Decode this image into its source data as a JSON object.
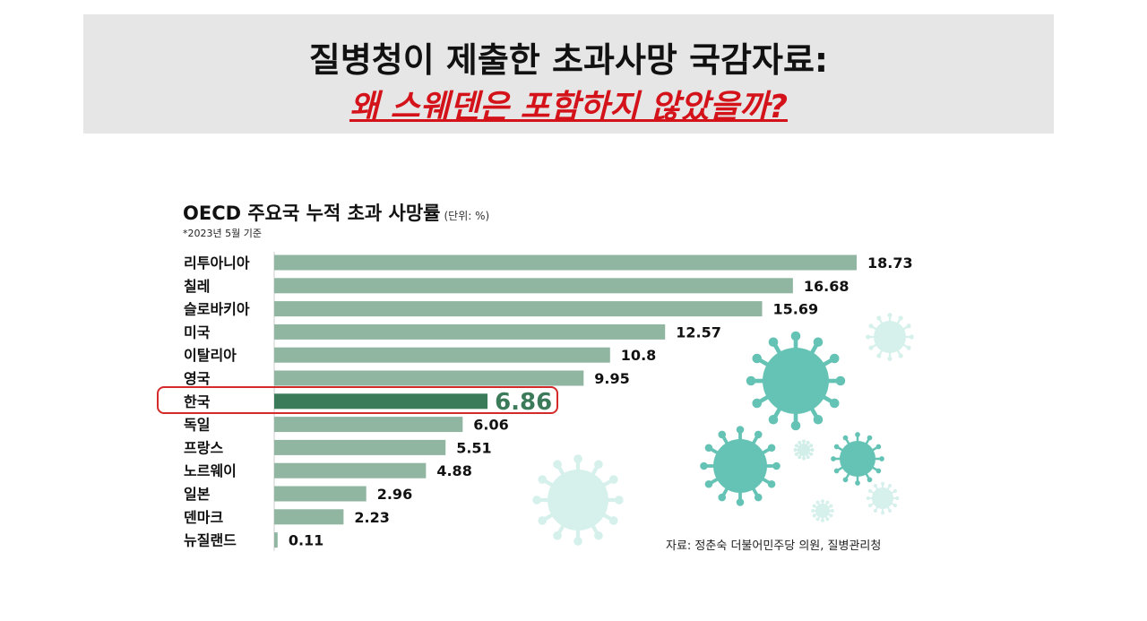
{
  "banner": {
    "line1": "질병청이 제출한 초과사망 국감자료:",
    "line2": "왜 스웨덴은 포함하지 않았을까?"
  },
  "source": "자료: 정춘숙 더불어민주당 의원, 질병관리청",
  "colors": {
    "bar": "#90b6a2",
    "highlight_bar": "#3c7b5a",
    "highlight_label": "#3c7b5a",
    "highlight_outline": "#d42a2a",
    "virus": "#5cc0b0"
  },
  "chart_data": {
    "type": "bar",
    "orientation": "horizontal",
    "title": "OECD 주요국 누적 초과 사망률",
    "unit": "(단위: %)",
    "subtitle": "*2023년 5월 기준",
    "categories": [
      "리투아니아",
      "칠레",
      "슬로바키아",
      "미국",
      "이탈리아",
      "영국",
      "한국",
      "독일",
      "프랑스",
      "노르웨이",
      "일본",
      "덴마크",
      "뉴질랜드"
    ],
    "values": [
      18.73,
      16.68,
      15.69,
      12.57,
      10.8,
      9.95,
      6.86,
      6.06,
      5.51,
      4.88,
      2.96,
      2.23,
      0.11
    ],
    "value_labels": [
      "18.73",
      "16.68",
      "15.69",
      "12.57",
      "10.8",
      "9.95",
      "6.86",
      "6.06",
      "5.51",
      "4.88",
      "2.96",
      "2.23",
      "0.11"
    ],
    "highlight": "한국",
    "xlim": [
      0,
      20
    ]
  }
}
